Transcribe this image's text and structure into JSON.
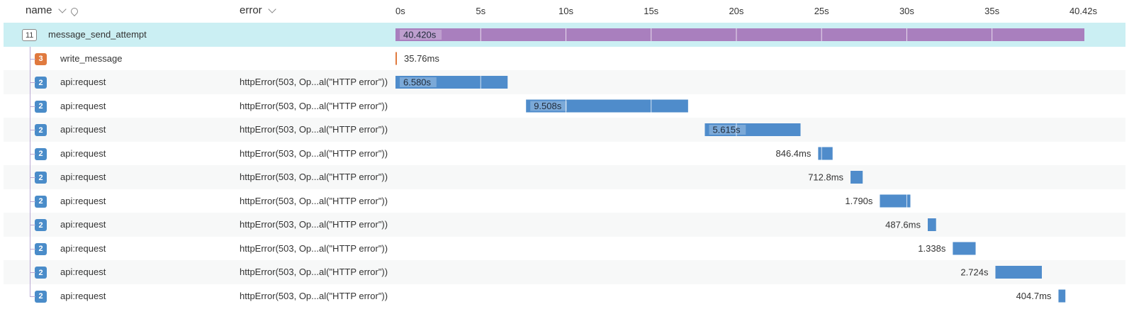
{
  "header": {
    "name_label": "name",
    "error_label": "error",
    "ticks": [
      "0s",
      "5s",
      "10s",
      "15s",
      "20s",
      "25s",
      "30s",
      "35s",
      "40.42s"
    ]
  },
  "colors": {
    "root_bar": "#a97fbe",
    "child_bar": "#4f8ccb",
    "write_badge": "#e07a3f",
    "api_badge": "#4a8cc9",
    "selected_row": "#cbeff3"
  },
  "timeline": {
    "total_seconds": 40.42
  },
  "spans": [
    {
      "id": "root",
      "badge": "11",
      "badge_style": "outline",
      "name": "message_send_attempt",
      "error": "",
      "start_s": 0,
      "duration_s": 40.42,
      "label": "40.420s",
      "label_pos": "inside",
      "color_key": "root_bar"
    },
    {
      "id": "write",
      "badge": "3",
      "badge_style": "write",
      "name": "write_message",
      "error": "",
      "start_s": 0,
      "duration_s": 0.03576,
      "label": "35.76ms",
      "label_pos": "after",
      "color_key": "write_badge"
    },
    {
      "id": "api1",
      "badge": "2",
      "badge_style": "api",
      "name": "api:request",
      "error": "httpError(503, Op...al(\"HTTP error\"))",
      "start_s": 0.0,
      "duration_s": 6.58,
      "label": "6.580s",
      "label_pos": "inside",
      "color_key": "child_bar"
    },
    {
      "id": "api2",
      "badge": "2",
      "badge_style": "api",
      "name": "api:request",
      "error": "httpError(503, Op...al(\"HTTP error\"))",
      "start_s": 7.66,
      "duration_s": 9.508,
      "label": "9.508s",
      "label_pos": "inside",
      "color_key": "child_bar"
    },
    {
      "id": "api3",
      "badge": "2",
      "badge_style": "api",
      "name": "api:request",
      "error": "httpError(503, Op...al(\"HTTP error\"))",
      "start_s": 18.15,
      "duration_s": 5.615,
      "label": "5.615s",
      "label_pos": "inside",
      "color_key": "child_bar"
    },
    {
      "id": "api4",
      "badge": "2",
      "badge_style": "api",
      "name": "api:request",
      "error": "httpError(503, Op...al(\"HTTP error\"))",
      "start_s": 24.8,
      "duration_s": 0.8464,
      "label": "846.4ms",
      "label_pos": "before",
      "color_key": "child_bar"
    },
    {
      "id": "api5",
      "badge": "2",
      "badge_style": "api",
      "name": "api:request",
      "error": "httpError(503, Op...al(\"HTTP error\"))",
      "start_s": 26.7,
      "duration_s": 0.7128,
      "label": "712.8ms",
      "label_pos": "before",
      "color_key": "child_bar"
    },
    {
      "id": "api6",
      "badge": "2",
      "badge_style": "api",
      "name": "api:request",
      "error": "httpError(503, Op...al(\"HTTP error\"))",
      "start_s": 28.42,
      "duration_s": 1.79,
      "label": "1.790s",
      "label_pos": "before",
      "color_key": "child_bar"
    },
    {
      "id": "api7",
      "badge": "2",
      "badge_style": "api",
      "name": "api:request",
      "error": "httpError(503, Op...al(\"HTTP error\"))",
      "start_s": 31.23,
      "duration_s": 0.4876,
      "label": "487.6ms",
      "label_pos": "before",
      "color_key": "child_bar"
    },
    {
      "id": "api8",
      "badge": "2",
      "badge_style": "api",
      "name": "api:request",
      "error": "httpError(503, Op...al(\"HTTP error\"))",
      "start_s": 32.7,
      "duration_s": 1.338,
      "label": "1.338s",
      "label_pos": "before",
      "color_key": "child_bar"
    },
    {
      "id": "api9",
      "badge": "2",
      "badge_style": "api",
      "name": "api:request",
      "error": "httpError(503, Op...al(\"HTTP error\"))",
      "start_s": 35.2,
      "duration_s": 2.724,
      "label": "2.724s",
      "label_pos": "before",
      "color_key": "child_bar"
    },
    {
      "id": "api10",
      "badge": "2",
      "badge_style": "api",
      "name": "api:request",
      "error": "httpError(503, Op...al(\"HTTP error\"))",
      "start_s": 38.9,
      "duration_s": 0.4047,
      "label": "404.7ms",
      "label_pos": "before",
      "color_key": "child_bar"
    }
  ]
}
